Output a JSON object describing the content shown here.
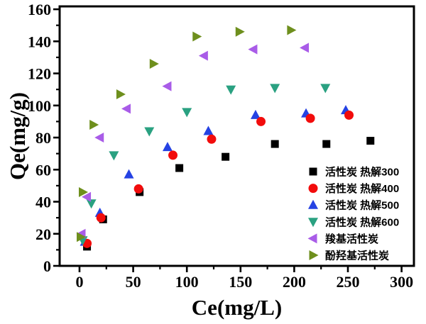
{
  "figure": {
    "background": "#ffffff",
    "frame_color": "#000000"
  },
  "chart_data": {
    "type": "scatter",
    "title": "",
    "xlabel": "Ce(mg/L)",
    "ylabel": "Qe(mg/g)",
    "xlim": [
      -18.5,
      311.5
    ],
    "ylim": [
      0,
      161.8
    ],
    "x_ticks": [
      0,
      50,
      100,
      150,
      200,
      250,
      300
    ],
    "y_ticks": [
      0,
      20,
      40,
      60,
      80,
      100,
      120,
      140,
      160
    ],
    "x_minor_ticks": [
      25,
      75,
      125,
      175,
      225,
      275
    ],
    "y_minor_ticks": [
      10,
      30,
      50,
      70,
      90,
      110,
      130,
      150
    ],
    "grid": false,
    "legend_position": "inside-lower-right",
    "series": [
      {
        "name": "活性炭 热解300",
        "marker": "square",
        "color": "#000000",
        "points": [
          [
            7,
            12
          ],
          [
            22,
            29
          ],
          [
            56,
            46
          ],
          [
            93,
            61
          ],
          [
            136,
            68
          ],
          [
            182,
            76
          ],
          [
            230,
            76
          ],
          [
            271,
            78
          ]
        ]
      },
      {
        "name": "活性炭 热解400",
        "marker": "circle",
        "color": "#F20C0C",
        "points": [
          [
            7,
            14
          ],
          [
            20,
            30
          ],
          [
            55,
            48
          ],
          [
            87,
            69
          ],
          [
            123,
            79
          ],
          [
            169,
            90
          ],
          [
            215,
            92
          ],
          [
            251,
            94
          ]
        ]
      },
      {
        "name": "活性炭 热解500",
        "marker": "triangle-up",
        "color": "#2542E3",
        "points": [
          [
            5,
            15
          ],
          [
            19,
            33
          ],
          [
            46,
            57
          ],
          [
            82,
            74
          ],
          [
            120,
            84
          ],
          [
            164,
            94
          ],
          [
            211,
            95
          ],
          [
            248,
            97
          ]
        ]
      },
      {
        "name": "活性炭 热解600",
        "marker": "triangle-down",
        "color": "#2AA181",
        "points": [
          [
            3,
            16
          ],
          [
            11,
            39
          ],
          [
            32,
            69
          ],
          [
            65,
            84
          ],
          [
            100,
            96
          ],
          [
            141,
            110
          ],
          [
            182,
            111
          ],
          [
            229,
            111
          ]
        ]
      },
      {
        "name": "羧基活性炭",
        "marker": "triangle-left",
        "color": "#A95CE8",
        "points": [
          [
            2,
            20
          ],
          [
            7,
            43
          ],
          [
            19,
            80
          ],
          [
            44,
            98
          ],
          [
            82,
            112
          ],
          [
            116,
            131
          ],
          [
            162,
            135
          ],
          [
            210,
            136
          ]
        ]
      },
      {
        "name": "酚羟基活性炭",
        "marker": "triangle-right",
        "color": "#6E8F1D",
        "points": [
          [
            1,
            18
          ],
          [
            3,
            46
          ],
          [
            13,
            88
          ],
          [
            38,
            107
          ],
          [
            69,
            126
          ],
          [
            109,
            143
          ],
          [
            149,
            146
          ],
          [
            197,
            147
          ]
        ]
      }
    ]
  }
}
